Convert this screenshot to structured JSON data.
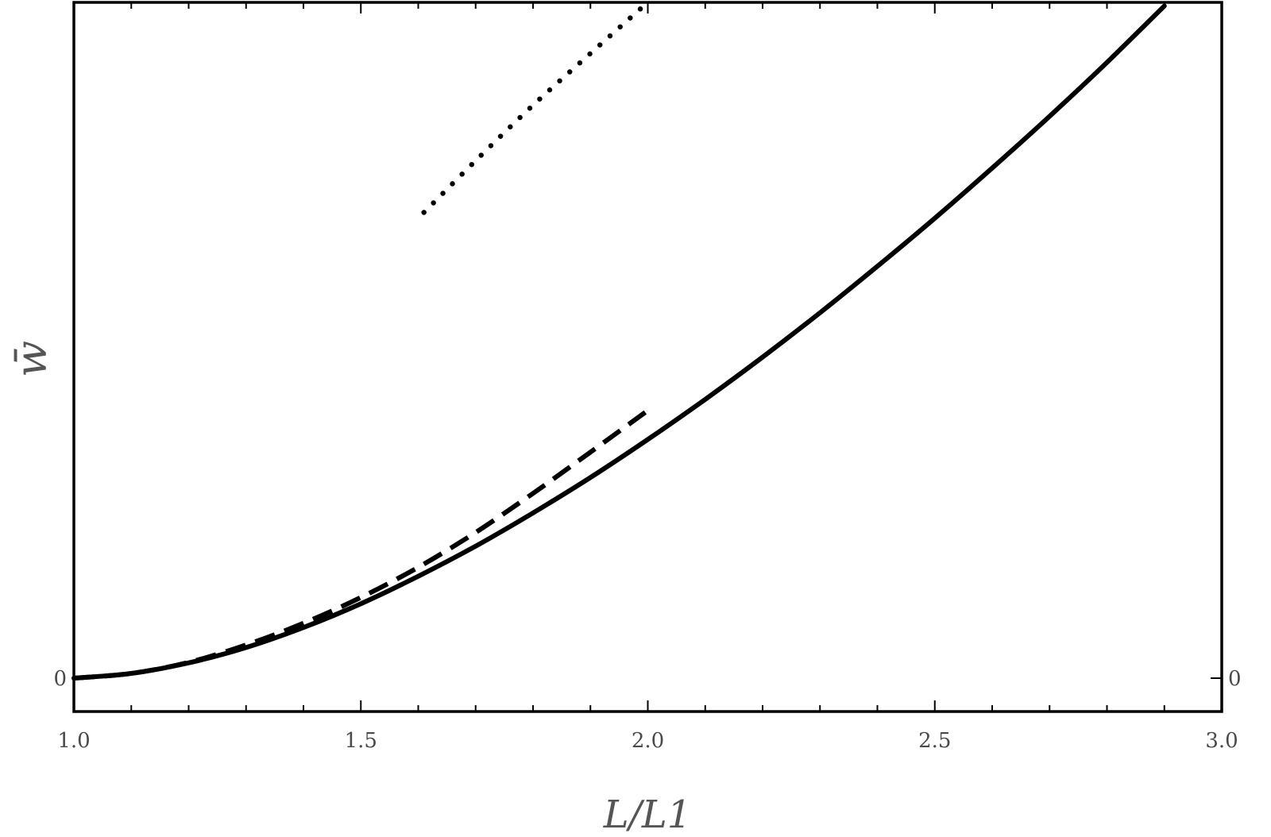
{
  "chart_data": {
    "type": "line",
    "xlabel": "L/L1",
    "ylabel": "w̄",
    "xlim": [
      1.0,
      3.0
    ],
    "x_ticks_labeled": [
      "1.0",
      "1.5",
      "2.0",
      "2.5",
      "3.0"
    ],
    "x_minor_tick_step": 0.1,
    "y_ticks_labeled": [
      "0"
    ],
    "y_right_ticks_labeled": [
      "0"
    ],
    "grid": false,
    "legend": "none",
    "series": [
      {
        "style": "solid",
        "x": [
          1.0,
          1.1,
          1.2,
          1.3,
          1.4,
          1.5,
          1.6,
          1.7,
          1.8,
          1.9,
          2.0,
          2.1,
          2.2,
          2.3,
          2.4,
          2.5,
          2.6,
          2.7,
          2.8,
          2.9
        ],
        "y": [
          0.0,
          0.009,
          0.029,
          0.058,
          0.096,
          0.141,
          0.193,
          0.25,
          0.313,
          0.38,
          0.452,
          0.528,
          0.608,
          0.692,
          0.78,
          0.871,
          0.966,
          1.064,
          1.166,
          1.273
        ]
      },
      {
        "style": "dashed",
        "x": [
          1.0,
          1.1,
          1.2,
          1.3,
          1.4,
          1.5,
          1.6,
          1.7,
          1.8,
          1.9,
          2.0
        ],
        "y": [
          0.0,
          0.009,
          0.03,
          0.063,
          0.104,
          0.153,
          0.21,
          0.276,
          0.35,
          0.428,
          0.507
        ]
      },
      {
        "style": "dotted",
        "x": [
          1.61,
          1.7,
          1.8,
          1.9,
          2.0
        ],
        "y": [
          0.882,
          0.98,
          1.085,
          1.183,
          1.28
        ]
      }
    ]
  }
}
